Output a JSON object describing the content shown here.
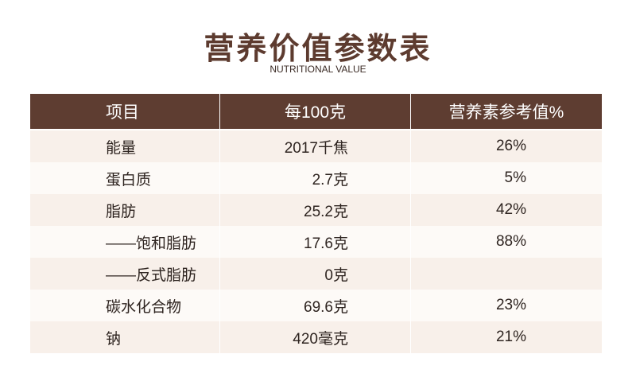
{
  "header": {
    "title": "营养价值参数表",
    "subtitle": "NUTRITIONAL VALUE"
  },
  "table": {
    "columns": [
      "项目",
      "每100克",
      "营养素参考值%"
    ],
    "rows": [
      [
        "能量",
        "2017千焦",
        "26%"
      ],
      [
        "蛋白质",
        "2.7克",
        "5%"
      ],
      [
        "脂肪",
        "25.2克",
        "42%"
      ],
      [
        "——饱和脂肪",
        "17.6克",
        "88%"
      ],
      [
        "——反式脂肪",
        "0克",
        null
      ],
      [
        "碳水化合物",
        "69.6克",
        "23%"
      ],
      [
        "钠",
        "420毫克",
        "21%"
      ]
    ]
  }
}
